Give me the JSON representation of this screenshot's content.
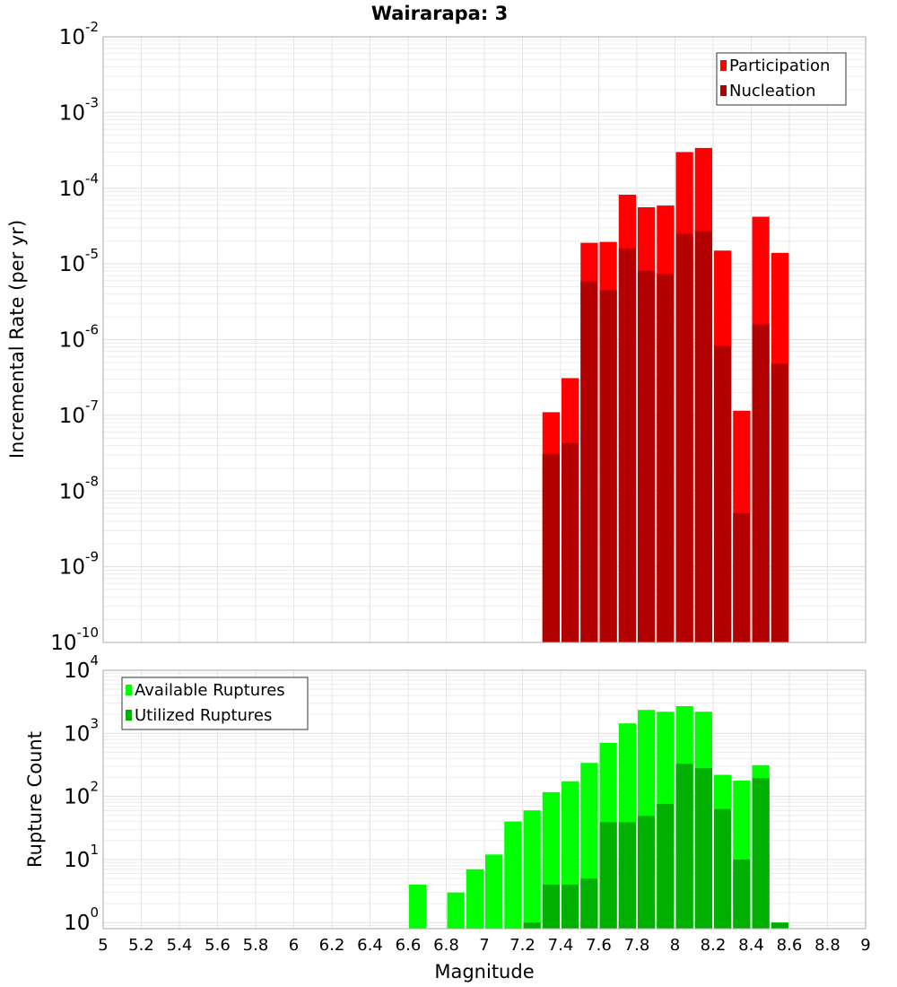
{
  "chart_data": [
    {
      "type": "bar",
      "title": "Wairarapa: 3",
      "xlabel": "Magnitude",
      "ylabel": "Incremental Rate (per yr)",
      "yscale": "log",
      "xlim": [
        5,
        9
      ],
      "ylim": [
        1e-10,
        0.01
      ],
      "grid": true,
      "legend_position": "top-right",
      "bin_width": 0.1,
      "x": [
        7.35,
        7.45,
        7.55,
        7.65,
        7.75,
        7.85,
        7.95,
        8.05,
        8.15,
        8.25,
        8.35,
        8.45,
        8.55
      ],
      "series": [
        {
          "name": "Participation",
          "color": "#ff0000",
          "values": [
            1.1e-07,
            3.1e-07,
            1.9e-05,
            1.95e-05,
            8.2e-05,
            5.6e-05,
            5.9e-05,
            0.0003,
            0.00034,
            1.5e-05,
            1.15e-07,
            4.2e-05,
            1.4e-05
          ]
        },
        {
          "name": "Nucleation",
          "color": "#b30000",
          "values": [
            3.1e-08,
            4.3e-08,
            5.9e-06,
            4.5e-06,
            1.6e-05,
            8.1e-06,
            7.4e-06,
            2.5e-05,
            2.7e-05,
            8.3e-07,
            5.1e-09,
            1.6e-06,
            4.8e-07
          ]
        }
      ],
      "ytick_labels": [
        {
          "base": "10",
          "exp": "-2",
          "v": 0.01
        },
        {
          "base": "10",
          "exp": "-3",
          "v": 0.001
        },
        {
          "base": "10",
          "exp": "-4",
          "v": 0.0001
        },
        {
          "base": "10",
          "exp": "-5",
          "v": 1e-05
        },
        {
          "base": "10",
          "exp": "-6",
          "v": 1e-06
        },
        {
          "base": "10",
          "exp": "-7",
          "v": 1e-07
        },
        {
          "base": "10",
          "exp": "-8",
          "v": 1e-08
        },
        {
          "base": "10",
          "exp": "-9",
          "v": 1e-09
        },
        {
          "base": "10",
          "exp": "-10",
          "v": 1e-10
        }
      ]
    },
    {
      "type": "bar",
      "xlabel": "Magnitude",
      "ylabel": "Rupture Count",
      "yscale": "log",
      "xlim": [
        5,
        9
      ],
      "ylim": [
        0.8,
        10000
      ],
      "grid": true,
      "legend_position": "top-left",
      "bin_width": 0.1,
      "x": [
        6.65,
        6.75,
        6.85,
        6.95,
        7.05,
        7.15,
        7.25,
        7.35,
        7.45,
        7.55,
        7.65,
        7.75,
        7.85,
        7.95,
        8.05,
        8.15,
        8.25,
        8.35,
        8.45,
        8.55
      ],
      "series": [
        {
          "name": "Available Ruptures",
          "color": "#00ff00",
          "values": [
            4,
            0,
            3,
            7,
            12,
            40,
            60,
            117,
            174,
            340,
            705,
            1440,
            2350,
            2200,
            2700,
            2200,
            220,
            178,
            313,
            1
          ]
        },
        {
          "name": "Utilized Ruptures",
          "color": "#00b000",
          "values": [
            0,
            0,
            0,
            0,
            0,
            0,
            1,
            4,
            4,
            5,
            39,
            39,
            49,
            76,
            330,
            280,
            63,
            10,
            195,
            1
          ]
        }
      ],
      "ytick_labels": [
        {
          "base": "10",
          "exp": "4",
          "v": 10000.0
        },
        {
          "base": "10",
          "exp": "3",
          "v": 1000.0
        },
        {
          "base": "10",
          "exp": "2",
          "v": 100.0
        },
        {
          "base": "10",
          "exp": "1",
          "v": 10.0
        },
        {
          "base": "10",
          "exp": "0",
          "v": 1
        }
      ],
      "xtick_labels": [
        "5",
        "5.2",
        "5.4",
        "5.6",
        "5.8",
        "6",
        "6.2",
        "6.4",
        "6.6",
        "6.8",
        "7",
        "7.2",
        "7.4",
        "7.6",
        "7.8",
        "8",
        "8.2",
        "8.4",
        "8.6",
        "8.8",
        "9"
      ]
    }
  ]
}
